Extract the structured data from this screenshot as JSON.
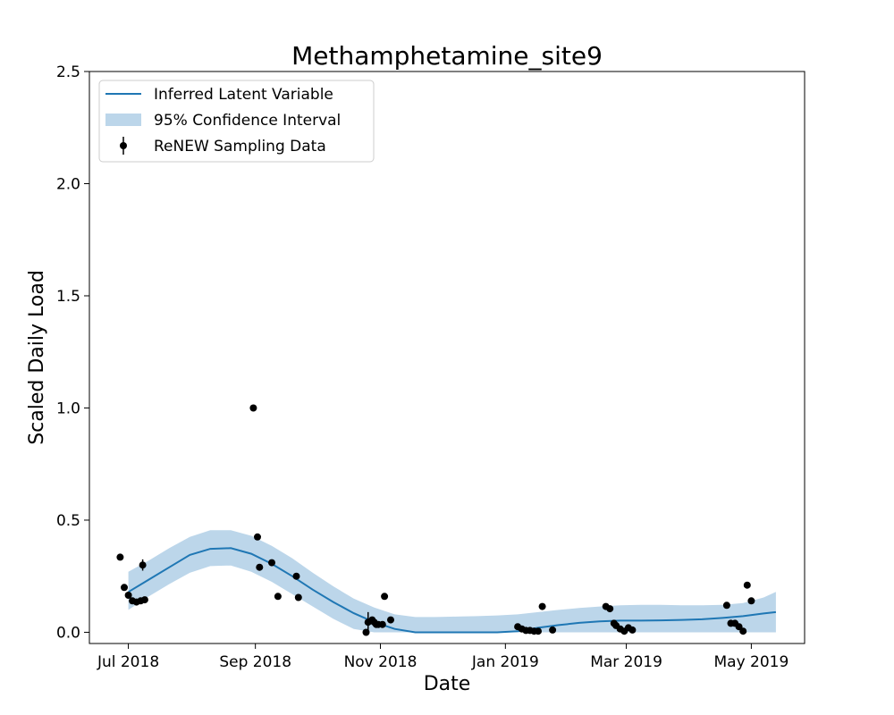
{
  "chart_data": {
    "type": "line",
    "title": "Methamphetamine_site9",
    "xlabel": "Date",
    "ylabel": "Scaled Daily Load",
    "ylim": [
      -0.05,
      2.5
    ],
    "yticks": [
      "0.0",
      "0.5",
      "1.0",
      "1.5",
      "2.0",
      "2.5"
    ],
    "ytick_values": [
      0.0,
      0.5,
      1.0,
      1.5,
      2.0,
      2.5
    ],
    "xlim_days": [
      -19,
      330
    ],
    "xtick_labels": [
      "Jul 2018",
      "Sep 2018",
      "Nov 2018",
      "Jan 2019",
      "Mar 2019",
      "May 2019"
    ],
    "xtick_days": [
      0,
      62,
      123,
      184,
      243,
      304
    ],
    "legend": {
      "position": "top-left",
      "entries": [
        "Inferred Latent Variable",
        "95% Confidence Interval",
        "ReNEW Sampling Data"
      ]
    },
    "colors": {
      "line": "#1f77b4",
      "band": "#bcd6ea",
      "points": "#000000"
    },
    "series": [
      {
        "name": "Inferred Latent Variable",
        "x_days": [
          0,
          10,
          20,
          30,
          40,
          50,
          60,
          70,
          80,
          90,
          100,
          110,
          120,
          130,
          140,
          150,
          160,
          170,
          180,
          190,
          200,
          210,
          220,
          230,
          240,
          250,
          260,
          270,
          280,
          290,
          300,
          310,
          316
        ],
        "values": [
          0.18,
          0.235,
          0.29,
          0.345,
          0.372,
          0.375,
          0.35,
          0.305,
          0.25,
          0.19,
          0.135,
          0.085,
          0.045,
          0.015,
          0.0,
          0.0,
          0.0,
          0.0,
          0.0,
          0.005,
          0.02,
          0.032,
          0.042,
          0.049,
          0.052,
          0.052,
          0.053,
          0.055,
          0.058,
          0.064,
          0.072,
          0.084,
          0.09
        ],
        "ci_lower": [
          0.1,
          0.16,
          0.215,
          0.265,
          0.295,
          0.298,
          0.27,
          0.225,
          0.17,
          0.115,
          0.06,
          0.015,
          0.0,
          0.0,
          0.0,
          0.0,
          0.0,
          0.0,
          0.0,
          0.0,
          0.0,
          0.0,
          0.0,
          0.0,
          0.0,
          0.0,
          0.0,
          0.0,
          0.0,
          0.0,
          0.0,
          0.0,
          0.0
        ],
        "ci_upper": [
          0.27,
          0.32,
          0.375,
          0.425,
          0.455,
          0.455,
          0.43,
          0.385,
          0.33,
          0.265,
          0.205,
          0.15,
          0.11,
          0.08,
          0.068,
          0.068,
          0.07,
          0.072,
          0.075,
          0.08,
          0.09,
          0.1,
          0.108,
          0.115,
          0.12,
          0.122,
          0.122,
          0.12,
          0.12,
          0.122,
          0.13,
          0.155,
          0.18
        ]
      }
    ],
    "sampling_data": {
      "name": "ReNEW Sampling Data",
      "x_days": [
        -4,
        -2,
        0,
        2,
        4,
        6,
        7,
        8,
        61,
        63,
        64,
        70,
        73,
        82,
        83,
        116,
        117,
        119,
        120,
        121,
        122,
        124,
        125,
        128,
        190,
        192,
        194,
        196,
        198,
        200,
        202,
        207,
        233,
        235,
        237,
        238,
        240,
        242,
        244,
        246,
        292,
        294,
        296,
        298,
        300,
        302,
        304
      ],
      "values": [
        0.335,
        0.2,
        0.165,
        0.14,
        0.135,
        0.14,
        0.3,
        0.145,
        1.0,
        0.425,
        0.29,
        0.31,
        0.16,
        0.25,
        0.155,
        0.0,
        0.045,
        0.055,
        0.045,
        0.035,
        0.035,
        0.035,
        0.16,
        0.055,
        0.025,
        0.015,
        0.008,
        0.008,
        0.005,
        0.005,
        0.115,
        0.01,
        0.115,
        0.105,
        0.04,
        0.03,
        0.015,
        0.005,
        0.02,
        0.01,
        0.12,
        0.04,
        0.04,
        0.025,
        0.005,
        0.21,
        0.14
      ],
      "errors": [
        0,
        0,
        0,
        0,
        0,
        0,
        0.025,
        0,
        0,
        0,
        0,
        0,
        0,
        0,
        0,
        0,
        0.045,
        0,
        0,
        0,
        0,
        0,
        0,
        0,
        0,
        0,
        0,
        0,
        0,
        0,
        0,
        0,
        0,
        0,
        0,
        0,
        0,
        0,
        0,
        0,
        0,
        0,
        0,
        0,
        0,
        0,
        0
      ]
    }
  }
}
